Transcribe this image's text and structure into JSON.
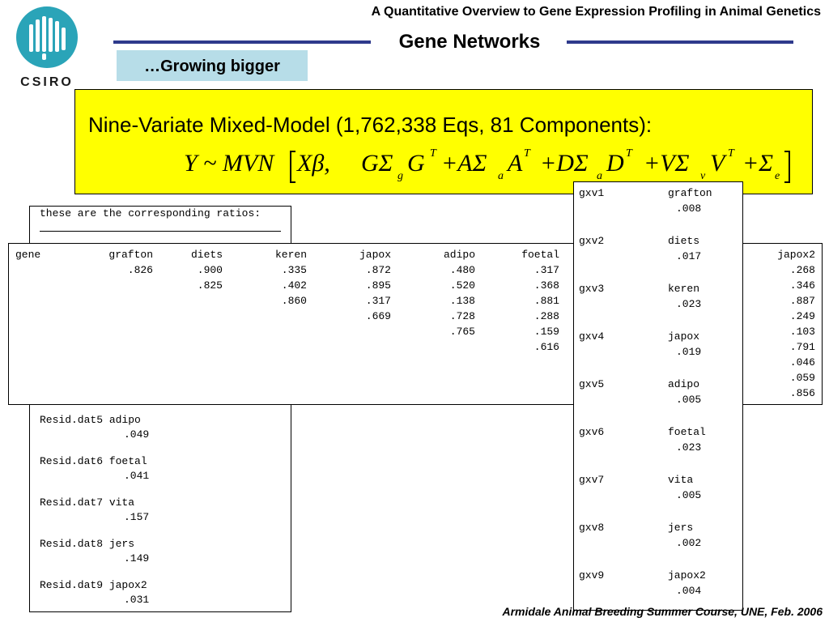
{
  "header": {
    "course_title": "A Quantitative Overview to Gene Expression Profiling in Animal Genetics",
    "logo_text": "CSIRO"
  },
  "slide": {
    "title": "Gene Networks",
    "subtitle": "…Growing bigger"
  },
  "model": {
    "caption": "Nine-Variate Mixed-Model (1,762,338 Eqs, 81 Components):",
    "formula": {
      "lhs": "Y ~ MVN",
      "term_fixed": "Xβ,",
      "term_g": "GΣ",
      "sub_g": "g",
      "g_mat": "G",
      "sup_g": "T",
      "term_a": "+AΣ",
      "sub_a": "a",
      "a_mat": "A",
      "sup_a": "T",
      "term_d": "+DΣ",
      "sub_d": "a",
      "d_mat": "D",
      "sup_d": "T",
      "term_v": "+VΣ",
      "sub_v": "v",
      "v_mat": "V",
      "sup_v": "T",
      "term_e": "+Σ",
      "sub_e": "e"
    }
  },
  "left_panel": {
    "heading": "these are the corresponding ratios:",
    "resid_rows": [
      {
        "label": "Resid.dat5 adipo",
        "value": ".049"
      },
      {
        "label": "Resid.dat6 foetal",
        "value": ".041"
      },
      {
        "label": "Resid.dat7 vita",
        "value": ".157"
      },
      {
        "label": "Resid.dat8 jers",
        "value": ".149"
      },
      {
        "label": "Resid.dat9 japox2",
        "value": ".031"
      }
    ]
  },
  "table": {
    "headers": [
      "gene",
      "grafton",
      "diets",
      "keren",
      "japox",
      "adipo",
      "foetal"
    ],
    "rows": [
      [
        "",
        ".826",
        ".900",
        ".335",
        ".872",
        ".480",
        ".317"
      ],
      [
        "",
        "",
        ".825",
        ".402",
        ".895",
        ".520",
        ".368"
      ],
      [
        "",
        "",
        "",
        ".860",
        ".317",
        ".138",
        ".881"
      ],
      [
        "",
        "",
        "",
        "",
        ".669",
        ".728",
        ".288"
      ],
      [
        "",
        "",
        "",
        "",
        "",
        ".765",
        ".159"
      ],
      [
        "",
        "",
        "",
        "",
        "",
        "",
        ".616"
      ]
    ],
    "extra_header": "japox2",
    "extra_values": [
      ".268",
      ".346",
      ".887",
      ".249",
      ".103",
      ".791",
      ".046",
      ".059",
      ".856"
    ]
  },
  "right_panel": {
    "items": [
      {
        "id": "gxv1",
        "trait": "grafton",
        "value": ".008"
      },
      {
        "id": "gxv2",
        "trait": "diets",
        "value": ".017"
      },
      {
        "id": "gxv3",
        "trait": "keren",
        "value": ".023"
      },
      {
        "id": "gxv4",
        "trait": "japox",
        "value": ".019"
      },
      {
        "id": "gxv5",
        "trait": "adipo",
        "value": ".005"
      },
      {
        "id": "gxv6",
        "trait": "foetal",
        "value": ".023"
      },
      {
        "id": "gxv7",
        "trait": "vita",
        "value": ".005"
      },
      {
        "id": "gxv8",
        "trait": "jers",
        "value": ".002"
      },
      {
        "id": "gxv9",
        "trait": "japox2",
        "value": ".004"
      }
    ]
  },
  "footer": {
    "text": "Armidale Animal Breeding Summer Course, UNE, Feb. 2006"
  },
  "colors": {
    "rule": "#2e3a8c",
    "subtitle_bg": "#b7dde8",
    "model_bg": "#ffff00",
    "logo": "#2aa4b8"
  }
}
